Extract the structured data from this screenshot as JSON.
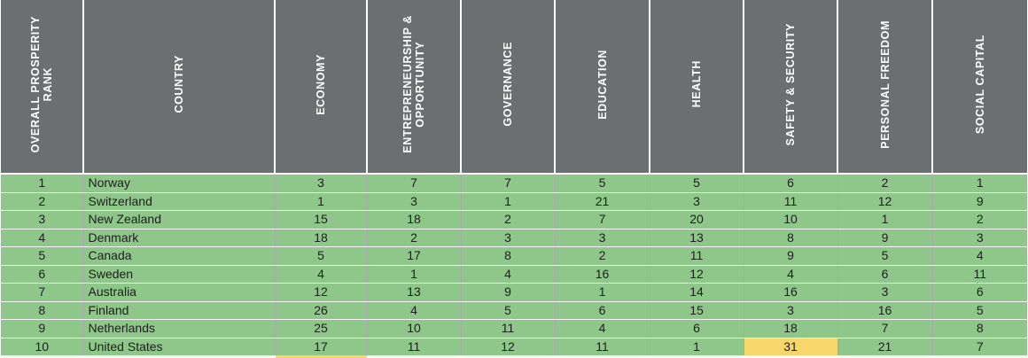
{
  "header": {
    "columns": [
      "OVERALL PROSPERITY\nRANK",
      "COUNTRY",
      "ECONOMY",
      "ENTREPRENEURSHIP &\nOPPORTUNITY",
      "GOVERNANCE",
      "EDUCATION",
      "HEALTH",
      "SAFETY & SECURITY",
      "PERSONAL FREEDOM",
      "SOCIAL CAPITAL"
    ]
  },
  "rows": [
    [
      "1",
      "Norway",
      "3",
      "7",
      "7",
      "5",
      "5",
      "6",
      "2",
      "1"
    ],
    [
      "2",
      "Switzerland",
      "1",
      "3",
      "1",
      "21",
      "3",
      "11",
      "12",
      "9"
    ],
    [
      "3",
      "New Zealand",
      "15",
      "18",
      "2",
      "7",
      "20",
      "10",
      "1",
      "2"
    ],
    [
      "4",
      "Denmark",
      "18",
      "2",
      "3",
      "3",
      "13",
      "8",
      "9",
      "3"
    ],
    [
      "5",
      "Canada",
      "5",
      "17",
      "8",
      "2",
      "11",
      "9",
      "5",
      "4"
    ],
    [
      "6",
      "Sweden",
      "4",
      "1",
      "4",
      "16",
      "12",
      "4",
      "6",
      "11"
    ],
    [
      "7",
      "Australia",
      "12",
      "13",
      "9",
      "1",
      "14",
      "16",
      "3",
      "6"
    ],
    [
      "8",
      "Finland",
      "26",
      "4",
      "5",
      "6",
      "15",
      "3",
      "16",
      "5"
    ],
    [
      "9",
      "Netherlands",
      "25",
      "10",
      "11",
      "4",
      "6",
      "18",
      "7",
      "8"
    ],
    [
      "10",
      "United States",
      "17",
      "11",
      "12",
      "11",
      "1",
      "31",
      "21",
      "7"
    ]
  ],
  "colors": {
    "header_bg": "#6c6e70",
    "row_bg": "#8ec789",
    "highlight": "#f7d66c"
  }
}
